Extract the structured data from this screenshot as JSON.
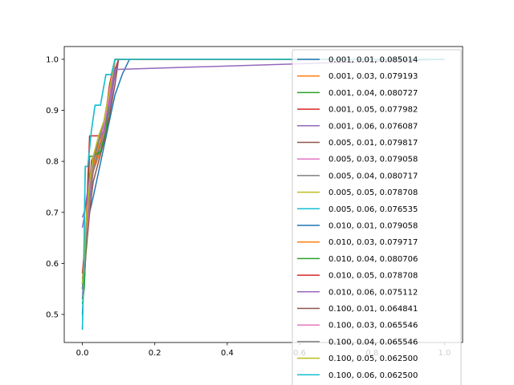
{
  "chart_data": {
    "type": "line",
    "title": "",
    "xlabel": "",
    "ylabel": "",
    "xlim": [
      -0.05,
      1.05
    ],
    "ylim": [
      0.445,
      1.025
    ],
    "xticks": [
      0.0,
      0.2,
      0.4,
      0.6,
      0.8,
      1.0
    ],
    "xtick_labels": [
      "0.0",
      "0.2",
      "0.4",
      "0.6",
      "0.8",
      "1.0"
    ],
    "yticks": [
      0.5,
      0.6,
      0.7,
      0.8,
      0.9,
      1.0
    ],
    "ytick_labels": [
      "0.5",
      "0.6",
      "0.7",
      "0.8",
      "0.9",
      "1.0"
    ],
    "grid": false,
    "legend_position": "right",
    "series": [
      {
        "name": "0.001, 0.01, 0.085014",
        "color": "#1f77b4",
        "x": [
          0,
          0.005,
          0.01,
          0.02,
          0.03,
          0.045,
          0.06,
          0.075,
          0.09,
          0.11,
          0.13,
          1.0
        ],
        "y": [
          0.5,
          0.57,
          0.63,
          0.7,
          0.73,
          0.78,
          0.83,
          0.88,
          0.93,
          0.97,
          1.0,
          1.0
        ]
      },
      {
        "name": "0.001, 0.03, 0.079193",
        "color": "#ff7f0e",
        "x": [
          0,
          0.005,
          0.01,
          0.02,
          0.03,
          0.045,
          0.06,
          0.07,
          0.085,
          0.1,
          1.0
        ],
        "y": [
          0.55,
          0.6,
          0.66,
          0.73,
          0.78,
          0.81,
          0.84,
          0.9,
          0.95,
          1.0,
          1.0
        ]
      },
      {
        "name": "0.001, 0.04, 0.080727",
        "color": "#2ca02c",
        "x": [
          0,
          0.005,
          0.01,
          0.02,
          0.03,
          0.05,
          0.065,
          0.08,
          0.09,
          1.0
        ],
        "y": [
          0.52,
          0.55,
          0.63,
          0.72,
          0.8,
          0.82,
          0.86,
          0.94,
          1.0,
          1.0
        ]
      },
      {
        "name": "0.001, 0.05, 0.077982",
        "color": "#d62728",
        "x": [
          0,
          0.005,
          0.01,
          0.02,
          0.025,
          0.04,
          0.055,
          0.07,
          0.085,
          0.1,
          1.0
        ],
        "y": [
          0.57,
          0.6,
          0.67,
          0.75,
          0.8,
          0.83,
          0.86,
          0.92,
          0.97,
          1.0,
          1.0
        ]
      },
      {
        "name": "0.001, 0.06, 0.076087",
        "color": "#9467bd",
        "x": [
          0,
          0.005,
          0.01,
          0.02,
          0.03,
          0.045,
          0.06,
          0.075,
          0.09,
          0.1,
          1.0
        ],
        "y": [
          0.69,
          0.7,
          0.72,
          0.75,
          0.79,
          0.82,
          0.86,
          0.9,
          0.97,
          1.0,
          1.0
        ]
      },
      {
        "name": "0.005, 0.01, 0.079817",
        "color": "#8c564b",
        "x": [
          0,
          0.005,
          0.01,
          0.02,
          0.03,
          0.045,
          0.06,
          0.075,
          0.09,
          0.1,
          1.0
        ],
        "y": [
          0.53,
          0.57,
          0.62,
          0.7,
          0.76,
          0.8,
          0.84,
          0.89,
          0.95,
          1.0,
          1.0
        ]
      },
      {
        "name": "0.005, 0.03, 0.079058",
        "color": "#e377c2",
        "x": [
          0,
          0.005,
          0.01,
          0.02,
          0.03,
          0.045,
          0.06,
          0.075,
          0.09,
          1.0
        ],
        "y": [
          0.54,
          0.58,
          0.64,
          0.72,
          0.78,
          0.82,
          0.85,
          0.91,
          1.0,
          1.0
        ]
      },
      {
        "name": "0.005, 0.04, 0.080717",
        "color": "#7f7f7f",
        "x": [
          0,
          0.005,
          0.01,
          0.02,
          0.03,
          0.045,
          0.06,
          0.075,
          0.09,
          1.0
        ],
        "y": [
          0.55,
          0.59,
          0.65,
          0.73,
          0.78,
          0.82,
          0.86,
          0.92,
          1.0,
          1.0
        ]
      },
      {
        "name": "0.005, 0.05, 0.078708",
        "color": "#bcbd22",
        "x": [
          0,
          0.005,
          0.01,
          0.02,
          0.03,
          0.045,
          0.06,
          0.075,
          0.09,
          1.0
        ],
        "y": [
          0.56,
          0.6,
          0.66,
          0.74,
          0.79,
          0.83,
          0.86,
          0.93,
          1.0,
          1.0
        ]
      },
      {
        "name": "0.005, 0.06, 0.076535",
        "color": "#17becf",
        "x": [
          0,
          0.003,
          0.008,
          0.015,
          0.025,
          0.035,
          0.05,
          0.065,
          0.08,
          0.09,
          1.0
        ],
        "y": [
          0.47,
          0.56,
          0.79,
          0.79,
          0.86,
          0.91,
          0.91,
          0.97,
          0.97,
          1.0,
          1.0
        ]
      },
      {
        "name": "0.010, 0.01, 0.079058",
        "color": "#1f77b4",
        "x": [
          0,
          0.005,
          0.01,
          0.02,
          0.03,
          0.045,
          0.06,
          0.075,
          0.09,
          1.0
        ],
        "y": [
          0.56,
          0.6,
          0.66,
          0.73,
          0.79,
          0.83,
          0.86,
          0.92,
          1.0,
          1.0
        ]
      },
      {
        "name": "0.010, 0.03, 0.079717",
        "color": "#ff7f0e",
        "x": [
          0,
          0.005,
          0.01,
          0.02,
          0.03,
          0.045,
          0.06,
          0.075,
          0.09,
          1.0
        ],
        "y": [
          0.55,
          0.59,
          0.65,
          0.74,
          0.79,
          0.83,
          0.86,
          0.92,
          1.0,
          1.0
        ]
      },
      {
        "name": "0.010, 0.04, 0.080706",
        "color": "#2ca02c",
        "x": [
          0,
          0.005,
          0.01,
          0.02,
          0.03,
          0.05,
          0.065,
          0.08,
          0.09,
          1.0
        ],
        "y": [
          0.55,
          0.55,
          0.64,
          0.81,
          0.81,
          0.82,
          0.86,
          0.95,
          1.0,
          1.0
        ]
      },
      {
        "name": "0.010, 0.05, 0.078708",
        "color": "#d62728",
        "x": [
          0,
          0.005,
          0.01,
          0.02,
          0.03,
          0.045,
          0.06,
          0.075,
          0.09,
          1.0
        ],
        "y": [
          0.58,
          0.62,
          0.67,
          0.85,
          0.85,
          0.85,
          0.87,
          0.95,
          1.0,
          1.0
        ]
      },
      {
        "name": "0.010, 0.06, 0.075112",
        "color": "#9467bd",
        "x": [
          0,
          0.005,
          0.01,
          0.02,
          0.03,
          0.045,
          0.06,
          0.075,
          0.09,
          1.0
        ],
        "y": [
          0.67,
          0.69,
          0.72,
          0.77,
          0.81,
          0.84,
          0.86,
          0.92,
          0.98,
          1.0
        ]
      },
      {
        "name": "0.100, 0.01, 0.064841",
        "color": "#8c564b",
        "x": [
          0,
          0.005,
          0.01,
          0.02,
          0.03,
          0.045,
          0.06,
          0.075,
          0.09,
          1.0
        ],
        "y": [
          0.56,
          0.6,
          0.66,
          0.74,
          0.8,
          0.84,
          0.87,
          0.93,
          1.0,
          1.0
        ]
      },
      {
        "name": "0.100, 0.03, 0.065546",
        "color": "#e377c2",
        "x": [
          0,
          0.005,
          0.01,
          0.02,
          0.03,
          0.045,
          0.06,
          0.075,
          0.09,
          1.0
        ],
        "y": [
          0.55,
          0.59,
          0.66,
          0.74,
          0.8,
          0.84,
          0.87,
          0.93,
          1.0,
          1.0
        ]
      },
      {
        "name": "0.100, 0.04, 0.065546",
        "color": "#7f7f7f",
        "x": [
          0,
          0.005,
          0.01,
          0.02,
          0.03,
          0.045,
          0.06,
          0.075,
          0.09,
          1.0
        ],
        "y": [
          0.55,
          0.6,
          0.67,
          0.75,
          0.8,
          0.84,
          0.88,
          0.94,
          1.0,
          1.0
        ]
      },
      {
        "name": "0.100, 0.05, 0.062500",
        "color": "#bcbd22",
        "x": [
          0,
          0.005,
          0.01,
          0.02,
          0.03,
          0.045,
          0.06,
          0.075,
          0.09,
          1.0
        ],
        "y": [
          0.56,
          0.61,
          0.68,
          0.76,
          0.81,
          0.85,
          0.88,
          0.94,
          1.0,
          1.0
        ]
      },
      {
        "name": "0.100, 0.06, 0.062500",
        "color": "#17becf",
        "x": [
          0,
          0.003,
          0.008,
          0.015,
          0.025,
          0.035,
          0.05,
          0.065,
          0.08,
          0.09,
          1.0
        ],
        "y": [
          0.47,
          0.56,
          0.79,
          0.79,
          0.86,
          0.91,
          0.91,
          0.97,
          0.97,
          1.0,
          1.0
        ]
      }
    ]
  }
}
